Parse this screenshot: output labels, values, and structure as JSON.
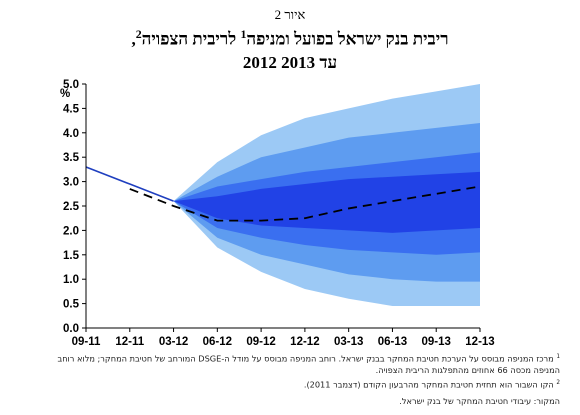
{
  "figure_label": "איור 2",
  "title_line1": "ריבית בנק ישראל בפועל ומניפה",
  "title_line1_sup": "1",
  "title_line1_after": " לריבית הצפויה",
  "title_line1_sup2": "2",
  "title_line1_end": ",",
  "title_line2": "2012 עד 2013",
  "notes": {
    "note1_sup": "1",
    "note1": "מרכז המניפה מבוסס על הערכת חטיבת המחקר בבנק ישראל. רוחב המניפה מבוסס על מודל ה-DSGE המורחב של חטיבת המחקר; מלוא רוחב המניפה מכסה 66 אחוזים מהתפלגות הריבית הצפויה.",
    "note2_sup": "2",
    "note2": "הקו השבור הוא תחזית חטיבת המחקר מהרבעון הקודם (דצמבר 2011).",
    "source": "המקור: עיבודי חטיבת המחקר של בנק ישראל."
  },
  "colors": {
    "band_outer": "#9cc9f5",
    "band_2": "#5e9cf0",
    "band_3": "#3a6ff0",
    "band_inner": "#2142e6",
    "actual_line": "#1f3fbf",
    "forecast_line": "#000000",
    "axis": "#000000"
  },
  "chart_data": {
    "type": "area",
    "title": "",
    "ylabel": "%",
    "ylim": [
      0,
      5
    ],
    "yticks": [
      "0.0",
      "0.5",
      "1.0",
      "1.5",
      "2.0",
      "2.5",
      "3.0",
      "3.5",
      "4.0",
      "4.5",
      "5.0"
    ],
    "x_categories": [
      "09-11",
      "12-11",
      "03-12",
      "06-12",
      "09-12",
      "12-12",
      "03-13",
      "06-13",
      "09-13",
      "12-13"
    ],
    "actual": {
      "x": [
        "09-11",
        "12-11",
        "03-12"
      ],
      "values": [
        3.3,
        2.95,
        2.6
      ]
    },
    "forecast_previous": {
      "x": [
        "12-11",
        "03-12",
        "06-12",
        "09-12",
        "12-12",
        "03-13",
        "06-13",
        "09-13",
        "12-13"
      ],
      "values": [
        2.85,
        2.5,
        2.2,
        2.2,
        2.25,
        2.45,
        2.6,
        2.75,
        2.9
      ]
    },
    "fan": {
      "x": [
        "03-12",
        "06-12",
        "09-12",
        "12-12",
        "03-13",
        "06-13",
        "09-13",
        "12-13"
      ],
      "bands": [
        {
          "upper": [
            2.6,
            3.4,
            3.95,
            4.3,
            4.5,
            4.7,
            4.85,
            5.0
          ],
          "lower": [
            2.6,
            1.65,
            1.15,
            0.8,
            0.6,
            0.45,
            0.45,
            0.45
          ]
        },
        {
          "upper": [
            2.6,
            3.1,
            3.5,
            3.7,
            3.9,
            4.0,
            4.1,
            4.2
          ],
          "lower": [
            2.6,
            1.85,
            1.5,
            1.3,
            1.1,
            1.0,
            0.95,
            0.95
          ]
        },
        {
          "upper": [
            2.6,
            2.9,
            3.05,
            3.2,
            3.3,
            3.4,
            3.5,
            3.6
          ],
          "lower": [
            2.6,
            2.05,
            1.85,
            1.7,
            1.6,
            1.55,
            1.5,
            1.55
          ]
        },
        {
          "upper": [
            2.6,
            2.7,
            2.85,
            2.95,
            3.05,
            3.1,
            3.15,
            3.2
          ],
          "lower": [
            2.6,
            2.25,
            2.1,
            2.05,
            2.0,
            1.95,
            2.0,
            2.05
          ]
        }
      ]
    },
    "grid": false,
    "legend": "none"
  }
}
